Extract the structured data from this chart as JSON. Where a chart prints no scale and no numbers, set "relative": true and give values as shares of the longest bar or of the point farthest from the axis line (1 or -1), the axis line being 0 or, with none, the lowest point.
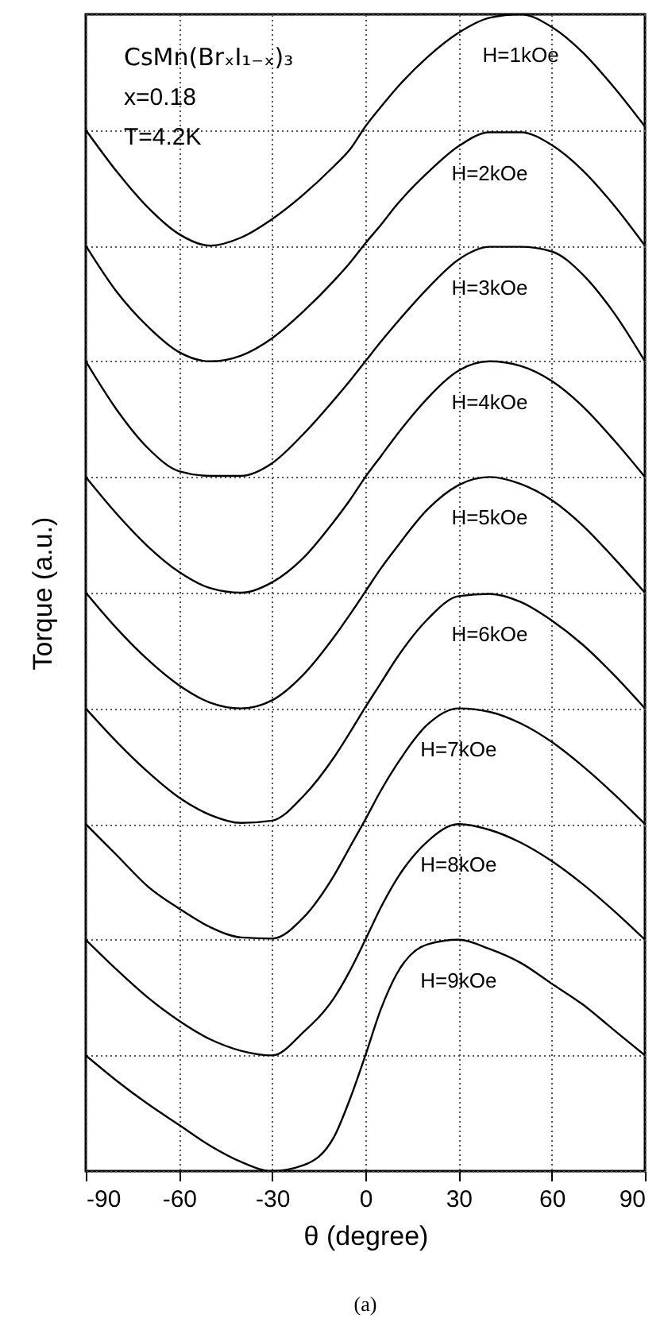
{
  "chart_data": {
    "type": "line",
    "xlabel": "θ (degree)",
    "ylabel": "Torque (a.u.)",
    "annotations": [
      "CsMn(BrₓI₁₋ₓ)₃",
      "x=0.18",
      "T=4.2K",
      "(a)"
    ],
    "x": [
      -90,
      -80,
      -70,
      -60,
      -50,
      -40,
      -30,
      -20,
      -10,
      -5,
      0,
      5,
      10,
      20,
      30,
      40,
      50,
      60,
      70,
      80,
      90
    ],
    "xlim": [
      -90,
      90
    ],
    "xticks": [
      -90,
      -60,
      -30,
      0,
      30,
      60,
      90
    ],
    "relative": true,
    "grid": true,
    "legend": false,
    "marker": "none",
    "line_style": "solid",
    "series": [
      {
        "name": "H=1kOe",
        "color": "#000000",
        "values": [
          0.9,
          0.864,
          0.833,
          0.81,
          0.8,
          0.807,
          0.823,
          0.844,
          0.869,
          0.883,
          0.903,
          0.92,
          0.936,
          0.963,
          0.984,
          0.997,
          1,
          0.989,
          0.967,
          0.937,
          0.903
        ]
      },
      {
        "name": "H=2kOe",
        "color": "#000000",
        "values": [
          0.8,
          0.76,
          0.73,
          0.708,
          0.7,
          0.705,
          0.72,
          0.743,
          0.77,
          0.785,
          0.802,
          0.818,
          0.835,
          0.863,
          0.886,
          0.898,
          0.898,
          0.887,
          0.865,
          0.835,
          0.8
        ]
      },
      {
        "name": "H=3kOe",
        "color": "#000000",
        "values": [
          0.7,
          0.658,
          0.625,
          0.605,
          0.601,
          0.601,
          0.612,
          0.637,
          0.667,
          0.683,
          0.7,
          0.717,
          0.733,
          0.763,
          0.788,
          0.799,
          0.799,
          0.795,
          0.775,
          0.742,
          0.7
        ]
      },
      {
        "name": "H=4kOe",
        "color": "#000000",
        "values": [
          0.6,
          0.568,
          0.54,
          0.518,
          0.504,
          0.5,
          0.509,
          0.53,
          0.562,
          0.58,
          0.6,
          0.618,
          0.636,
          0.668,
          0.692,
          0.7,
          0.696,
          0.683,
          0.661,
          0.632,
          0.6
        ]
      },
      {
        "name": "H=5kOe",
        "color": "#000000",
        "values": [
          0.5,
          0.469,
          0.442,
          0.42,
          0.405,
          0.4,
          0.407,
          0.429,
          0.462,
          0.481,
          0.501,
          0.521,
          0.539,
          0.572,
          0.593,
          0.6,
          0.594,
          0.58,
          0.558,
          0.53,
          0.5
        ]
      },
      {
        "name": "H=6kOe",
        "color": "#000000",
        "values": [
          0.4,
          0.371,
          0.345,
          0.323,
          0.308,
          0.301,
          0.303,
          0.324,
          0.358,
          0.379,
          0.401,
          0.422,
          0.443,
          0.477,
          0.497,
          0.499,
          0.492,
          0.476,
          0.455,
          0.429,
          0.4
        ]
      },
      {
        "name": "H=7kOe",
        "color": "#000000",
        "values": [
          0.3,
          0.273,
          0.246,
          0.227,
          0.211,
          0.202,
          0.201,
          0.219,
          0.256,
          0.28,
          0.304,
          0.329,
          0.351,
          0.386,
          0.4,
          0.397,
          0.387,
          0.371,
          0.35,
          0.326,
          0.3
        ]
      },
      {
        "name": "H=8kOe",
        "color": "#000000",
        "values": [
          0.2,
          0.174,
          0.15,
          0.13,
          0.114,
          0.104,
          0.1,
          0.12,
          0.15,
          0.173,
          0.2,
          0.228,
          0.252,
          0.285,
          0.3,
          0.295,
          0.284,
          0.268,
          0.248,
          0.225,
          0.2
        ]
      },
      {
        "name": "H=9kOe",
        "color": "#000000",
        "values": [
          0.1,
          0.078,
          0.058,
          0.04,
          0.022,
          0.008,
          0,
          0.005,
          0.03,
          0.062,
          0.1,
          0.14,
          0.17,
          0.196,
          0.2,
          0.192,
          0.18,
          0.162,
          0.144,
          0.122,
          0.1
        ]
      }
    ]
  }
}
